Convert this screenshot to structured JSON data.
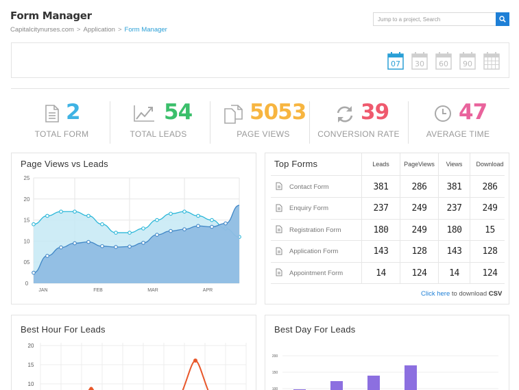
{
  "header": {
    "title": "Form Manager",
    "breadcrumb": [
      "Capitalcitynurses.com",
      "Application",
      "Form Manager"
    ],
    "separator": ">"
  },
  "search": {
    "placeholder": "Jump to a project, Search"
  },
  "date_range": {
    "options": [
      {
        "label": "07",
        "active": true
      },
      {
        "label": "30",
        "active": false
      },
      {
        "label": "60",
        "active": false
      },
      {
        "label": "90",
        "active": false
      },
      {
        "label": "",
        "active": false
      }
    ]
  },
  "stats": [
    {
      "value": "2",
      "label": "TOTAL FORM",
      "color": "#3fb3e4"
    },
    {
      "value": "54",
      "label": "TOTAL LEADS",
      "color": "#3bbf6b"
    },
    {
      "value": "5053",
      "label": "PAGE VIEWS",
      "color": "#f7b540"
    },
    {
      "value": "39",
      "label": "CONVERSION RATE",
      "color": "#ef5a6e"
    },
    {
      "value": "47",
      "label": "AVERAGE TIME",
      "color": "#e9639c"
    }
  ],
  "page_views_chart": {
    "title": "Page Views vs Leads",
    "y_ticks": [
      "25",
      "20",
      "15",
      "10",
      "05",
      "0"
    ],
    "x_ticks": [
      "JAN",
      "FEB",
      "MAR",
      "APR"
    ]
  },
  "chart_data": {
    "type": "area",
    "title": "Page Views vs Leads",
    "x": [
      0,
      1,
      2,
      3,
      4,
      5,
      6,
      7,
      8,
      9,
      10,
      11,
      12,
      13,
      14,
      15
    ],
    "categories": [
      "JAN",
      "FEB",
      "MAR",
      "APR"
    ],
    "ylim": [
      0,
      25
    ],
    "series": [
      {
        "values": [
          14,
          16,
          17,
          17,
          16,
          14,
          12,
          12,
          13,
          15,
          16.5,
          17,
          16,
          15,
          13,
          11
        ],
        "color": "#29b6d8"
      },
      {
        "values": [
          2.5,
          6.5,
          8.5,
          9.5,
          9.8,
          8.8,
          8.6,
          8.7,
          9.6,
          11.5,
          12.4,
          12.8,
          13.6,
          13.4,
          14.2,
          18.5
        ],
        "color": "#3f86c6"
      }
    ]
  },
  "top_forms": {
    "title": "Top Forms",
    "columns": [
      "Leads",
      "PageViews",
      "Views",
      "Download"
    ],
    "rows": [
      {
        "name": "Contact Form",
        "values": [
          "381",
          "286",
          "381",
          "286"
        ]
      },
      {
        "name": "Enquiry Form",
        "values": [
          "237",
          "249",
          "237",
          "249"
        ]
      },
      {
        "name": "Registration Form",
        "values": [
          "180",
          "249",
          "180",
          "15"
        ]
      },
      {
        "name": "Application Form",
        "values": [
          "143",
          "128",
          "143",
          "128"
        ]
      },
      {
        "name": "Appointment Form",
        "values": [
          "14",
          "124",
          "14",
          "124"
        ]
      }
    ],
    "download": {
      "link": "Click here",
      "text": "to download",
      "format": "CSV"
    }
  },
  "best_hour": {
    "title": "Best Hour For Leads",
    "y_ticks": [
      "20",
      "15",
      "10"
    ],
    "color": "#e8572a"
  },
  "best_day": {
    "title": "Best Day For Leads",
    "y_ticks": [
      "200",
      "150",
      "100"
    ],
    "color": "#8c6fe0"
  }
}
